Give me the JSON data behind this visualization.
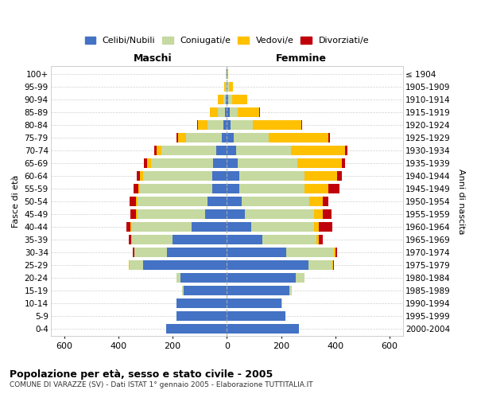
{
  "age_groups": [
    "0-4",
    "5-9",
    "10-14",
    "15-19",
    "20-24",
    "25-29",
    "30-34",
    "35-39",
    "40-44",
    "45-49",
    "50-54",
    "55-59",
    "60-64",
    "65-69",
    "70-74",
    "75-79",
    "80-84",
    "85-89",
    "90-94",
    "95-99",
    "100+"
  ],
  "birth_years": [
    "2000-2004",
    "1995-1999",
    "1990-1994",
    "1985-1989",
    "1980-1984",
    "1975-1979",
    "1970-1974",
    "1965-1969",
    "1960-1964",
    "1955-1959",
    "1950-1954",
    "1945-1949",
    "1940-1944",
    "1935-1939",
    "1930-1934",
    "1925-1929",
    "1920-1924",
    "1915-1919",
    "1910-1914",
    "1905-1909",
    "≤ 1904"
  ],
  "male": {
    "celibi": [
      225,
      185,
      185,
      160,
      170,
      310,
      220,
      200,
      130,
      80,
      70,
      55,
      55,
      50,
      40,
      20,
      12,
      8,
      4,
      2,
      2
    ],
    "coniugati": [
      0,
      1,
      2,
      5,
      15,
      50,
      120,
      150,
      220,
      250,
      260,
      265,
      255,
      230,
      200,
      130,
      60,
      25,
      10,
      3,
      1
    ],
    "vedovi": [
      0,
      0,
      0,
      0,
      0,
      1,
      2,
      3,
      5,
      5,
      5,
      5,
      10,
      15,
      20,
      30,
      35,
      30,
      18,
      4,
      1
    ],
    "divorziati": [
      0,
      0,
      0,
      0,
      0,
      2,
      5,
      8,
      15,
      20,
      25,
      20,
      12,
      10,
      8,
      5,
      2,
      0,
      0,
      0,
      0
    ]
  },
  "female": {
    "nubili": [
      265,
      215,
      200,
      230,
      255,
      300,
      220,
      130,
      90,
      65,
      55,
      45,
      45,
      40,
      35,
      25,
      15,
      10,
      5,
      3,
      2
    ],
    "coniugate": [
      0,
      1,
      3,
      10,
      30,
      90,
      175,
      200,
      230,
      255,
      250,
      240,
      240,
      220,
      200,
      130,
      80,
      30,
      15,
      5,
      1
    ],
    "vedove": [
      0,
      0,
      0,
      0,
      1,
      2,
      5,
      10,
      20,
      35,
      50,
      90,
      120,
      165,
      200,
      220,
      180,
      80,
      55,
      15,
      2
    ],
    "divorziate": [
      0,
      0,
      0,
      0,
      0,
      2,
      5,
      15,
      50,
      30,
      20,
      40,
      18,
      10,
      8,
      5,
      2,
      2,
      0,
      0,
      0
    ]
  },
  "colors": {
    "celibi": "#4472c4",
    "coniugati": "#c6d9a0",
    "vedovi": "#ffc000",
    "divorziati": "#c0000a"
  },
  "title": "Popolazione per età, sesso e stato civile - 2005",
  "subtitle": "COMUNE DI VARAZZE (SV) - Dati ISTAT 1° gennaio 2005 - Elaborazione TUTTITALIA.IT",
  "xlabel_left": "Maschi",
  "xlabel_right": "Femmine",
  "ylabel_left": "Fasce di età",
  "ylabel_right": "Anni di nascita",
  "xlim": 650,
  "background_color": "#ffffff",
  "grid_color": "#cccccc"
}
